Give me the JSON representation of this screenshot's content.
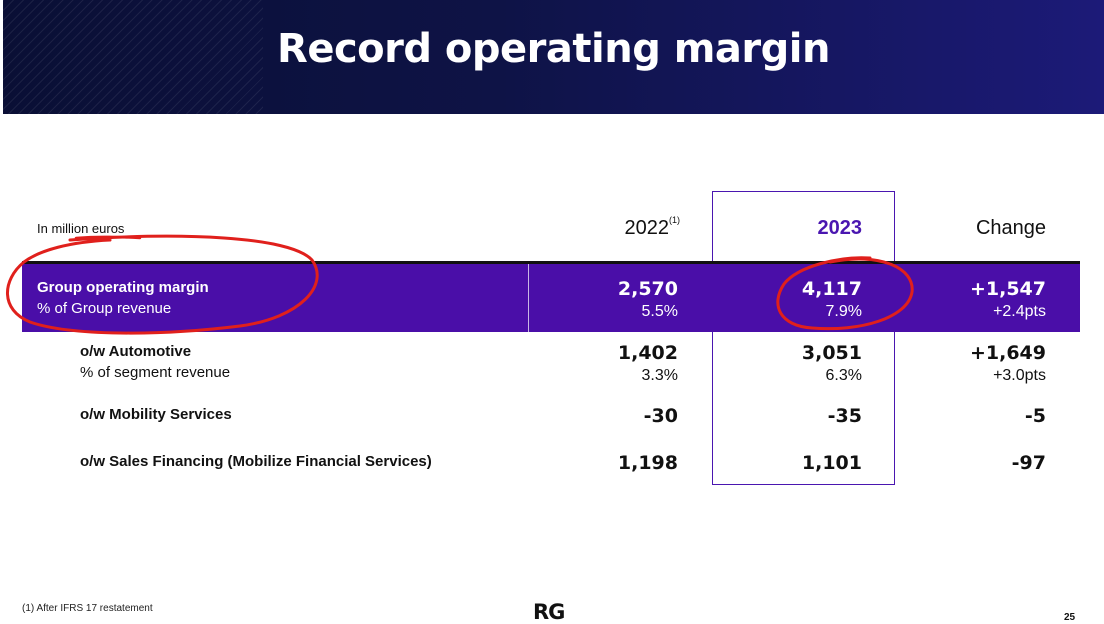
{
  "slide": {
    "title": "Record operating margin",
    "unit_label": "In million euros",
    "columns": {
      "y2022": "2022",
      "y2022_note": "(1)",
      "y2023": "2023",
      "change": "Change"
    },
    "rows": [
      {
        "label": "Group operating margin",
        "sub_label": "% of Group revenue",
        "v2022": "2,570",
        "p2022": "5.5%",
        "v2023": "4,117",
        "p2023": "7.9%",
        "change": "+1,547",
        "change_pct": "+2.4pts"
      },
      {
        "label": "o/w Automotive",
        "sub_label": "% of segment revenue",
        "v2022": "1,402",
        "p2022": "3.3%",
        "v2023": "3,051",
        "p2023": "6.3%",
        "change": "+1,649",
        "change_pct": "+3.0pts"
      },
      {
        "label": "o/w Mobility Services",
        "v2022": "-30",
        "v2023": "-35",
        "change": "-5"
      },
      {
        "label": "o/w Sales Financing (Mobilize Financial Services)",
        "v2022": "1,198",
        "v2023": "1,101",
        "change": "-97"
      }
    ],
    "footnote": "(1)   After IFRS 17 restatement",
    "logo": "RG",
    "page_number": "25"
  },
  "colors": {
    "header_bg": "#0e1346",
    "band": "#4a0ea8",
    "accent_2023": "#4a16b0",
    "annotation": "#e0201c"
  }
}
